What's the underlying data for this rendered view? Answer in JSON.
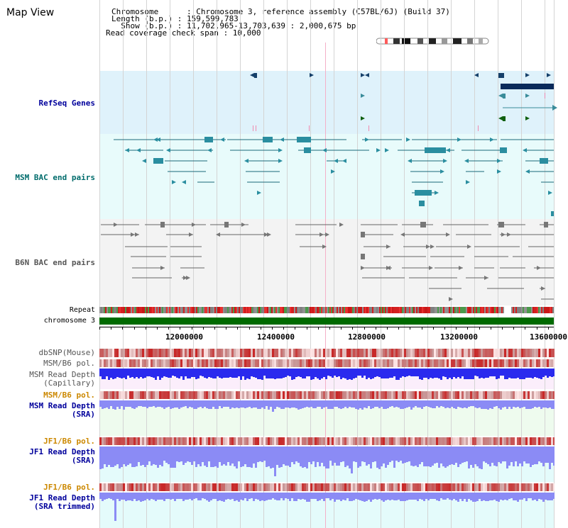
{
  "page": {
    "title": "Map View"
  },
  "header": {
    "chromosome_line": "Chromosome      : Chromosome 3, reference assembly (C57BL/6J) (Build 37)",
    "length_line": "Length (b.p.) : 159,599,783",
    "show_line": "  Show (b.p.) : 11,702,965-13,703,639 : 2,000,675 bp",
    "coverage_line": "Read coverage check span : 10,000"
  },
  "tracks": {
    "refseq": "RefSeq Genes",
    "msm_bac": "MSM BAC end pairs",
    "b6n_bac": "B6N BAC end pairs",
    "repeat": "Repeat",
    "chromosome": "chromosome 3",
    "dbsnp": "dbSNP(Mouse)",
    "msm_b6_pol_1": "MSM/B6 pol.",
    "msm_read_depth_cap_1": "MSM Read Depth",
    "msm_read_depth_cap_2": "(Capillary)",
    "msm_b6_pol_2": "MSM/B6 pol.",
    "msm_read_depth_sra_1": "MSM Read Depth",
    "msm_read_depth_sra_2": "(SRA)",
    "jf1_b6_pol_1": "JF1/B6 pol.",
    "jf1_read_depth_sra_1": "JF1 Read Depth",
    "jf1_read_depth_sra_2": "(SRA)",
    "jf1_b6_pol_2": "JF1/B6 pol.",
    "jf1_read_depth_trim_1": "JF1 Read Depth",
    "jf1_read_depth_trim_2": "(SRA trimmed)"
  },
  "axis": {
    "ticks": [
      "12000000",
      "12400000",
      "12800000",
      "13200000",
      "13600000"
    ]
  },
  "colors": {
    "label_blue": "#00009c",
    "label_teal": "#006c6c",
    "label_orange": "#cc8800",
    "refseq_bg": "#dff2fb",
    "msm_bac_bg": "#e8fbfb",
    "b6n_bac_bg": "#f2f2f2",
    "depth_blue": "#2222ee",
    "depth_light": "#8b8bf5",
    "chromosome_green": "#006a00"
  }
}
